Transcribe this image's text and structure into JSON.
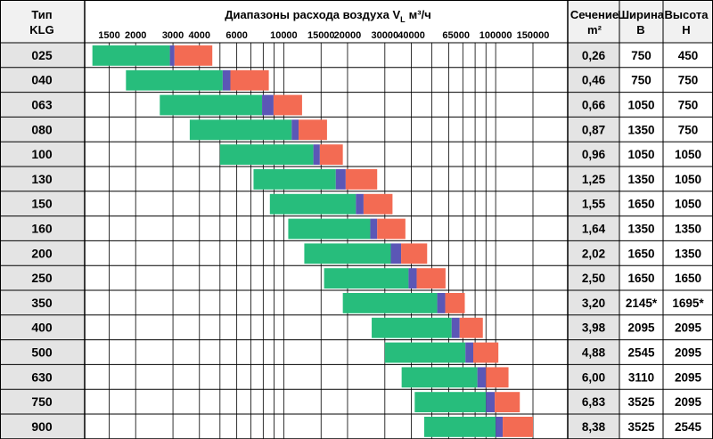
{
  "colors": {
    "green": "#27bd7c",
    "purple": "#5b57b6",
    "orange": "#f36b53",
    "header_bg": "#f1f1f1",
    "row_label_bg": "#e4e4e4",
    "section_bg": "#e4e4e4",
    "grid": "#000000"
  },
  "headers": {
    "type_line1": "Тип",
    "type_line2": "KLG",
    "section_line1": "Сечение",
    "section_line2": "m²",
    "width_line1": "Ширина",
    "width_line2": "B",
    "height_line1": "Высота",
    "height_line2": "H"
  },
  "chart_data": {
    "type": "bar",
    "orientation": "horizontal-range",
    "title": "Диапазоны расхода воздуха V",
    "title_subscript": "L",
    "title_unit": "м³/ч",
    "x_scale": "log",
    "xlim": [
      1100,
      185000
    ],
    "x_tick_labels": [
      "1500",
      "2000",
      "3000",
      "4000",
      "6000",
      "10000",
      "15000",
      "20000",
      "30000",
      "40000",
      "65000",
      "100000",
      "150000"
    ],
    "x_tick_values": [
      1500,
      2000,
      3000,
      4000,
      6000,
      10000,
      15000,
      20000,
      30000,
      40000,
      65000,
      100000,
      150000
    ],
    "x_gridlines": [
      1500,
      2000,
      3000,
      4000,
      5000,
      6000,
      7000,
      8000,
      9000,
      10000,
      15000,
      20000,
      30000,
      40000,
      50000,
      60000,
      70000,
      80000,
      90000,
      100000,
      150000
    ],
    "categories": [
      "025",
      "040",
      "063",
      "080",
      "100",
      "130",
      "150",
      "160",
      "200",
      "250",
      "350",
      "400",
      "500",
      "630",
      "750",
      "900"
    ],
    "series": [
      {
        "color_key": "green",
        "ranges": [
          [
            1250,
            2900
          ],
          [
            1800,
            5150
          ],
          [
            2600,
            7900
          ],
          [
            3600,
            10900
          ],
          [
            5000,
            13800
          ],
          [
            7200,
            17600
          ],
          [
            8600,
            21900
          ],
          [
            10500,
            25600
          ],
          [
            12500,
            32000
          ],
          [
            15500,
            38800
          ],
          [
            19000,
            53000
          ],
          [
            26000,
            62000
          ],
          [
            30000,
            72000
          ],
          [
            36000,
            82000
          ],
          [
            41500,
            90000
          ],
          [
            46000,
            100000
          ]
        ]
      },
      {
        "color_key": "purple",
        "ranges": [
          [
            2900,
            3050
          ],
          [
            5150,
            5600
          ],
          [
            7900,
            8950
          ],
          [
            10900,
            11750
          ],
          [
            13800,
            14800
          ],
          [
            17600,
            19600
          ],
          [
            21900,
            23800
          ],
          [
            25600,
            27600
          ],
          [
            32000,
            35800
          ],
          [
            38800,
            42400
          ],
          [
            53000,
            57800
          ],
          [
            62000,
            67600
          ],
          [
            72000,
            78400
          ],
          [
            82000,
            90000
          ],
          [
            90000,
            99000
          ],
          [
            100000,
            108000
          ]
        ]
      },
      {
        "color_key": "orange",
        "ranges": [
          [
            3050,
            4600
          ],
          [
            5600,
            8500
          ],
          [
            8950,
            12200
          ],
          [
            11750,
            16000
          ],
          [
            14800,
            19000
          ],
          [
            19600,
            27600
          ],
          [
            23800,
            32600
          ],
          [
            27600,
            37500
          ],
          [
            35800,
            47500
          ],
          [
            42400,
            58000
          ],
          [
            57800,
            71500
          ],
          [
            67600,
            87000
          ],
          [
            78400,
            103000
          ],
          [
            90000,
            115000
          ],
          [
            99000,
            130000
          ],
          [
            108000,
            150000
          ]
        ]
      }
    ]
  },
  "table": {
    "section_m2": [
      "0,26",
      "0,46",
      "0,66",
      "0,87",
      "0,96",
      "1,25",
      "1,55",
      "1,64",
      "2,02",
      "2,50",
      "3,20",
      "3,98",
      "4,88",
      "6,00",
      "6,83",
      "8,38"
    ],
    "width_b": [
      "750",
      "750",
      "1050",
      "1350",
      "1050",
      "1350",
      "1650",
      "1350",
      "1650",
      "1650",
      "2145*",
      "2095",
      "2545",
      "3110",
      "3525",
      "3525"
    ],
    "height_h": [
      "450",
      "750",
      "750",
      "750",
      "1050",
      "1050",
      "1050",
      "1350",
      "1350",
      "1650",
      "1695*",
      "2095",
      "2095",
      "2095",
      "2095",
      "2545"
    ]
  }
}
